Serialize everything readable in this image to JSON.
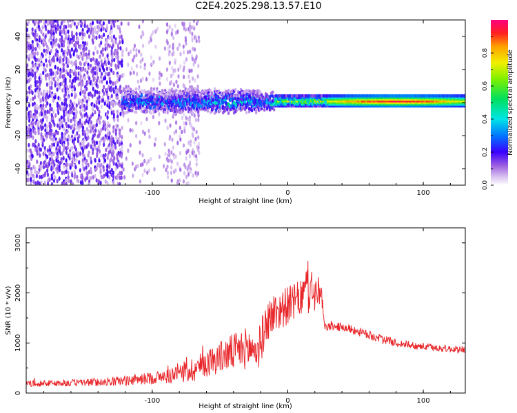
{
  "title": "C2E4.2025.298.13.57.E10",
  "chart_data": [
    {
      "type": "heatmap",
      "xlabel": "Height of straight line (km)",
      "ylabel": "Frequency (Hz)",
      "xlim": [
        -193,
        131
      ],
      "ylim": [
        -50,
        50
      ],
      "xticks": [
        -100,
        0,
        100
      ],
      "yticks": [
        -40,
        -20,
        0,
        20,
        40
      ],
      "colorbar": {
        "label": "Normalized spectral amplitude",
        "range": [
          0.0,
          1.0
        ],
        "ticks": [
          0.0,
          0.2,
          0.4,
          0.6,
          0.8
        ]
      },
      "band": {
        "center_frequency_hz": 1,
        "onset_height_km": -122,
        "peak_amplitude_height_km": 80
      }
    },
    {
      "type": "line",
      "xlabel": "Height of straight line (km)",
      "ylabel": "SNR (10 * v/v)",
      "xlim": [
        -193,
        131
      ],
      "ylim": [
        0,
        3300
      ],
      "xticks": [
        -100,
        0,
        100
      ],
      "yticks": [
        0,
        1000,
        2000,
        3000
      ],
      "color": "#e8262a",
      "series": [
        {
          "name": "SNR",
          "x": [
            -193,
            -160,
            -130,
            -110,
            -90,
            -80,
            -70,
            -60,
            -50,
            -40,
            -30,
            -22,
            -15,
            -10,
            0,
            10,
            15,
            20,
            25,
            27,
            30,
            40,
            50,
            60,
            70,
            80,
            90,
            100,
            110,
            120,
            131
          ],
          "y": [
            190,
            200,
            230,
            270,
            330,
            390,
            470,
            600,
            720,
            820,
            900,
            850,
            1450,
            1600,
            1750,
            1900,
            2100,
            2000,
            1950,
            1300,
            1330,
            1320,
            1250,
            1150,
            1080,
            1000,
            960,
            930,
            900,
            880,
            870
          ],
          "noise_amplitude": [
            60,
            70,
            90,
            110,
            140,
            220,
            260,
            280,
            320,
            380,
            420,
            420,
            420,
            420,
            380,
            360,
            550,
            400,
            300,
            80,
            80,
            90,
            90,
            90,
            80,
            80,
            75,
            75,
            70,
            70,
            70
          ]
        }
      ]
    }
  ]
}
